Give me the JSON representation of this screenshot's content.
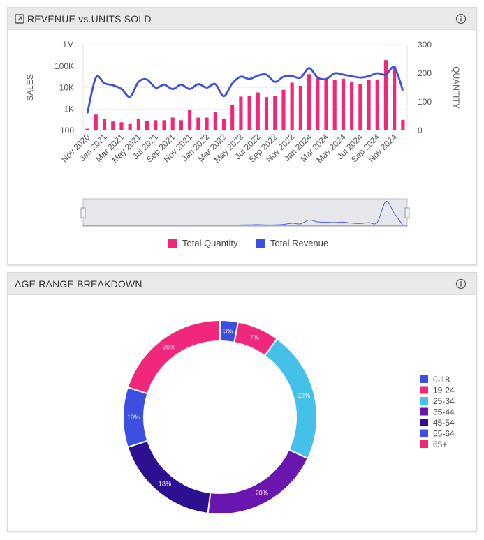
{
  "panels": {
    "revenue": {
      "title": "REVENUE vs.UNITS SOLD"
    },
    "age": {
      "title": "AGE RANGE BREAKDOWN"
    }
  },
  "icons": {
    "info": "info-icon",
    "expand": "expand-icon"
  },
  "colors": {
    "quantity": "#f0277a",
    "revenue": "#3d4fe0"
  },
  "chart_data": [
    {
      "type": "bar+line",
      "title": "REVENUE vs.UNITS SOLD",
      "ylabel_left": "SALES",
      "ylabel_right": "QUANTITY",
      "left_axis": {
        "scale": "log",
        "ticks": [
          "100",
          "1K",
          "10K",
          "100K",
          "1M"
        ],
        "range": [
          100,
          1000000
        ]
      },
      "right_axis": {
        "scale": "linear",
        "ticks": [
          "0",
          "100",
          "200",
          "300"
        ],
        "range": [
          0,
          300
        ]
      },
      "x": [
        "Nov 2020",
        "Dec 2020",
        "Jan 2021",
        "Feb 2021",
        "Mar 2021",
        "Apr 2021",
        "May 2021",
        "Jun 2021",
        "Jul 2021",
        "Aug 2021",
        "Sep 2021",
        "Oct 2021",
        "Nov 2021",
        "Dec 2021",
        "Jan 2022",
        "Feb 2022",
        "Mar 2022",
        "Apr 2022",
        "May 2022",
        "Jun 2022",
        "Jul 2022",
        "Aug 2022",
        "Sep 2022",
        "Oct 2022",
        "Nov 2022",
        "Dec 2022",
        "Jan 2024",
        "Feb 2024",
        "Mar 2024",
        "Apr 2024",
        "May 2024",
        "Jun 2024",
        "Jul 2024",
        "Aug 2024",
        "Sep 2024",
        "Oct 2024",
        "Nov 2024",
        "Dec 2024"
      ],
      "x_tick_labels": [
        "Nov 2020",
        "Jan 2021",
        "Mar 2021",
        "May 2021",
        "Jul 2021",
        "Sep 2021",
        "Nov 2021",
        "Jan 2022",
        "Mar 2022",
        "May 2022",
        "Jul 2022",
        "Sep 2022",
        "Nov 2022",
        "Jan 2024",
        "Mar 2024",
        "May 2024",
        "Jul 2024",
        "Sep 2024",
        "Nov 2024"
      ],
      "series": [
        {
          "name": "Total Quantity",
          "kind": "bar",
          "axis": "left",
          "color": "#f0277a",
          "values": [
            120,
            550,
            350,
            260,
            240,
            200,
            350,
            280,
            300,
            300,
            400,
            300,
            900,
            400,
            400,
            750,
            350,
            1500,
            3800,
            4200,
            5900,
            3600,
            4100,
            7800,
            17000,
            12000,
            42000,
            28000,
            25000,
            23000,
            26000,
            18000,
            15000,
            22000,
            24000,
            190000,
            95000,
            310
          ]
        },
        {
          "name": "Total Revenue",
          "kind": "line",
          "axis": "right",
          "color": "#3d4fe0",
          "values": [
            60,
            185,
            165,
            158,
            145,
            118,
            170,
            178,
            150,
            160,
            145,
            160,
            145,
            162,
            150,
            162,
            120,
            165,
            188,
            180,
            192,
            195,
            170,
            188,
            190,
            185,
            218,
            185,
            180,
            200,
            195,
            190,
            185,
            190,
            200,
            195,
            220,
            140
          ]
        }
      ],
      "legend": {
        "placement": "bottom",
        "entries": [
          "Total Quantity",
          "Total Revenue"
        ]
      },
      "navigator": true
    },
    {
      "type": "pie",
      "title": "AGE RANGE BREAKDOWN",
      "donut": true,
      "categories": [
        "0-18",
        "19-24",
        "25-34",
        "35-44",
        "45-54",
        "55-64",
        "65+"
      ],
      "values": [
        3,
        7,
        22,
        20,
        18,
        10,
        20
      ],
      "labels": [
        "3%",
        "7%",
        "22%",
        "20%",
        "18%",
        "10%",
        "20%"
      ],
      "colors": [
        "#3d4fe0",
        "#f0277a",
        "#45c0e8",
        "#6a15b0",
        "#2d1090",
        "#3d4fe0",
        "#f0277a"
      ],
      "legend": {
        "placement": "right",
        "entries": [
          "0-18",
          "19-24",
          "25-34",
          "35-44",
          "45-54",
          "55-64",
          "65+"
        ]
      }
    }
  ]
}
